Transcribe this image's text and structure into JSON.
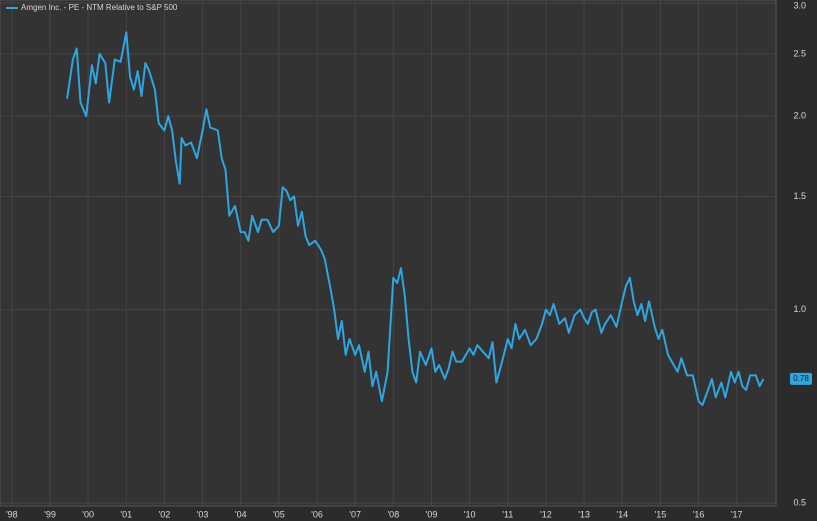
{
  "chart_data": {
    "type": "line",
    "legend": "Amgen Inc. - PE - NTM Relative to S&P 500",
    "log_scale": true,
    "grid": true,
    "legend_position": "top-left",
    "x": [
      1999.45,
      1999.6,
      1999.7,
      1999.8,
      1999.95,
      2000.1,
      2000.2,
      2000.3,
      2000.45,
      2000.55,
      2000.7,
      2000.85,
      2001.0,
      2001.1,
      2001.2,
      2001.3,
      2001.4,
      2001.5,
      2001.6,
      2001.75,
      2001.85,
      2002.0,
      2002.1,
      2002.2,
      2002.3,
      2002.4,
      2002.45,
      2002.55,
      2002.7,
      2002.85,
      2003.0,
      2003.1,
      2003.2,
      2003.4,
      2003.5,
      2003.6,
      2003.7,
      2003.85,
      2004.0,
      2004.1,
      2004.2,
      2004.3,
      2004.45,
      2004.55,
      2004.7,
      2004.85,
      2005.0,
      2005.1,
      2005.2,
      2005.3,
      2005.4,
      2005.5,
      2005.6,
      2005.7,
      2005.8,
      2005.95,
      2006.1,
      2006.2,
      2006.35,
      2006.45,
      2006.55,
      2006.65,
      2006.75,
      2006.85,
      2007.0,
      2007.1,
      2007.25,
      2007.35,
      2007.45,
      2007.55,
      2007.7,
      2007.85,
      2008.0,
      2008.1,
      2008.2,
      2008.3,
      2008.4,
      2008.5,
      2008.6,
      2008.7,
      2008.85,
      2009.0,
      2009.1,
      2009.2,
      2009.35,
      2009.45,
      2009.55,
      2009.65,
      2009.8,
      2010.0,
      2010.1,
      2010.2,
      2010.35,
      2010.5,
      2010.6,
      2010.7,
      2010.85,
      2011.0,
      2011.1,
      2011.2,
      2011.3,
      2011.45,
      2011.6,
      2011.75,
      2011.9,
      2012.0,
      2012.1,
      2012.2,
      2012.35,
      2012.5,
      2012.6,
      2012.75,
      2012.9,
      2013.0,
      2013.1,
      2013.2,
      2013.3,
      2013.45,
      2013.55,
      2013.7,
      2013.85,
      2014.0,
      2014.1,
      2014.2,
      2014.3,
      2014.4,
      2014.5,
      2014.6,
      2014.7,
      2014.85,
      2014.95,
      2015.05,
      2015.2,
      2015.3,
      2015.45,
      2015.55,
      2015.7,
      2015.85,
      2016.0,
      2016.1,
      2016.25,
      2016.35,
      2016.45,
      2016.6,
      2016.7,
      2016.85,
      2016.95,
      2017.05,
      2017.15,
      2017.25,
      2017.35,
      2017.5,
      2017.6,
      2017.7
    ],
    "series": [
      {
        "name": "Amgen Inc. - PE - NTM Relative to S&P 500",
        "color": "#2ea6e0",
        "values": [
          2.13,
          2.45,
          2.55,
          2.1,
          2.0,
          2.4,
          2.25,
          2.5,
          2.42,
          2.1,
          2.45,
          2.43,
          2.7,
          2.3,
          2.2,
          2.35,
          2.15,
          2.42,
          2.35,
          2.2,
          1.95,
          1.9,
          2.0,
          1.9,
          1.7,
          1.57,
          1.85,
          1.8,
          1.82,
          1.72,
          1.9,
          2.05,
          1.92,
          1.9,
          1.72,
          1.65,
          1.4,
          1.45,
          1.32,
          1.32,
          1.28,
          1.4,
          1.32,
          1.38,
          1.38,
          1.32,
          1.35,
          1.55,
          1.53,
          1.48,
          1.5,
          1.35,
          1.42,
          1.3,
          1.26,
          1.28,
          1.24,
          1.2,
          1.08,
          1.0,
          0.9,
          0.96,
          0.85,
          0.9,
          0.85,
          0.88,
          0.8,
          0.86,
          0.76,
          0.8,
          0.72,
          0.8,
          1.12,
          1.1,
          1.16,
          1.05,
          0.9,
          0.8,
          0.77,
          0.86,
          0.82,
          0.87,
          0.8,
          0.82,
          0.78,
          0.81,
          0.86,
          0.83,
          0.83,
          0.87,
          0.85,
          0.88,
          0.86,
          0.84,
          0.89,
          0.77,
          0.83,
          0.9,
          0.87,
          0.95,
          0.9,
          0.93,
          0.88,
          0.9,
          0.95,
          1.0,
          0.98,
          1.02,
          0.95,
          0.97,
          0.92,
          0.98,
          1.0,
          0.97,
          0.95,
          0.99,
          1.0,
          0.92,
          0.95,
          0.98,
          0.94,
          1.03,
          1.09,
          1.12,
          1.03,
          0.98,
          1.02,
          0.96,
          1.03,
          0.94,
          0.9,
          0.93,
          0.85,
          0.83,
          0.8,
          0.84,
          0.79,
          0.79,
          0.72,
          0.71,
          0.75,
          0.78,
          0.73,
          0.77,
          0.73,
          0.8,
          0.77,
          0.8,
          0.76,
          0.75,
          0.79,
          0.79,
          0.76,
          0.78
        ]
      }
    ],
    "xlim": [
      1997.69,
      2018.03
    ],
    "xticks": [
      {
        "value": 1998,
        "label": "'98"
      },
      {
        "value": 1999,
        "label": "'99"
      },
      {
        "value": 2000,
        "label": "'00"
      },
      {
        "value": 2001,
        "label": "'01"
      },
      {
        "value": 2002,
        "label": "'02"
      },
      {
        "value": 2003,
        "label": "'03"
      },
      {
        "value": 2004,
        "label": "'04"
      },
      {
        "value": 2005,
        "label": "'05"
      },
      {
        "value": 2006,
        "label": "'06"
      },
      {
        "value": 2007,
        "label": "'07"
      },
      {
        "value": 2008,
        "label": "'08"
      },
      {
        "value": 2009,
        "label": "'09"
      },
      {
        "value": 2010,
        "label": "'10"
      },
      {
        "value": 2011,
        "label": "'11"
      },
      {
        "value": 2012,
        "label": "'12"
      },
      {
        "value": 2013,
        "label": "'13"
      },
      {
        "value": 2014,
        "label": "'14"
      },
      {
        "value": 2015,
        "label": "'15"
      },
      {
        "value": 2016,
        "label": "'16"
      },
      {
        "value": 2017,
        "label": "'17"
      }
    ],
    "ylim": [
      0.5,
      3
    ],
    "yticks": [
      {
        "value": 3,
        "label": "3.0"
      },
      2.5,
      {
        "value": 2,
        "label": "2.0"
      },
      1.5,
      {
        "value": 1,
        "label": "1.0"
      },
      0.5
    ]
  }
}
